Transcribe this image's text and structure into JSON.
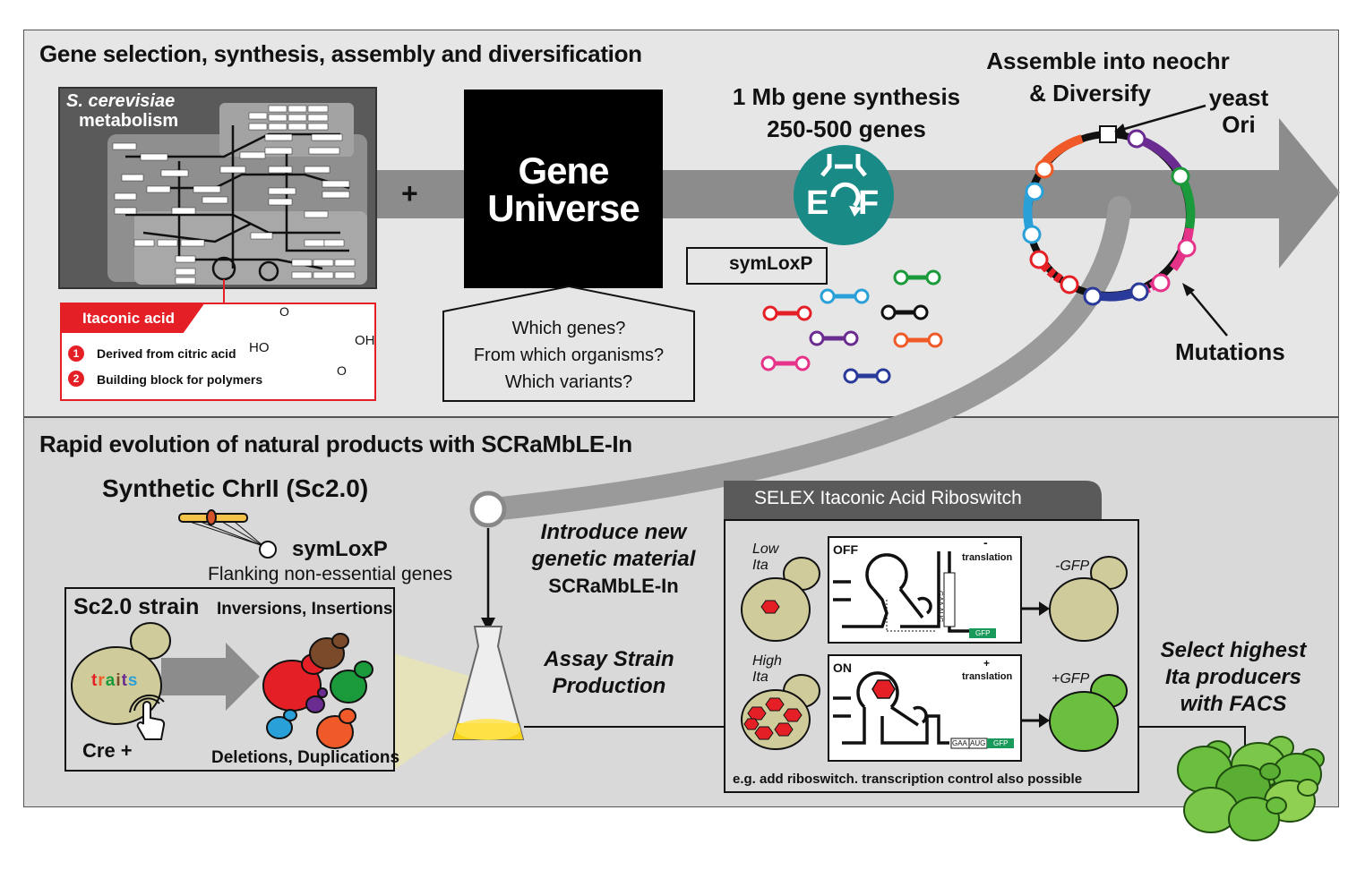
{
  "top": {
    "heading": "Gene selection, synthesis, assembly and diversification",
    "metabolism": {
      "title_italic": "S. cerevisiae",
      "title_rest": "metabolism"
    },
    "plus": "+",
    "itaconic": {
      "title": "Itaconic acid",
      "items": [
        {
          "num": "1",
          "text": "Derived from citric acid"
        },
        {
          "num": "2",
          "text": "Building block for polymers"
        }
      ],
      "formula": {
        "ho": "HO",
        "oh": "OH",
        "o": "O"
      }
    },
    "gene_universe": {
      "line1": "Gene",
      "line2": "Universe"
    },
    "questions": [
      "Which genes?",
      "From which organisms?",
      "Which variants?"
    ],
    "synthesis": {
      "line1": "1 Mb gene synthesis",
      "line2": "250-500 genes"
    },
    "logo": {
      "left": "E",
      "right": "F"
    },
    "symloxp_legend": "symLoxP",
    "assemble": {
      "line1": "Assemble into neochr",
      "line2": "& Diversify"
    },
    "yeast_ori": {
      "line1": "yeast",
      "line2": "Ori"
    },
    "mutations": "Mutations"
  },
  "bottom": {
    "heading": "Rapid evolution of natural products with SCRaMbLE-In",
    "synthetic_chr": "Synthetic ChrII (Sc2.0)",
    "symloxp": "symLoxP",
    "flanking": "Flanking non-essential genes",
    "strain": {
      "title": "Sc2.0 strain",
      "inversions": "Inversions, Insertions",
      "traits": [
        "t",
        "r",
        "a",
        "i",
        "t",
        "s"
      ],
      "cre": "Cre +",
      "deletions": "Deletions, Duplications"
    },
    "introduce": {
      "line1": "Introduce new",
      "line2": "genetic material",
      "line3": "SCRaMbLE-In"
    },
    "assay": {
      "line1": "Assay Strain",
      "line2": "Production"
    },
    "selex": {
      "title": "SELEX Itaconic Acid Riboswitch",
      "low": {
        "line1": "Low",
        "line2": "Ita"
      },
      "high": {
        "line1": "High",
        "line2": "Ita"
      },
      "off": "OFF",
      "on": "ON",
      "minus": "-",
      "plus": "+",
      "translation": "translation",
      "gfp_box": "GFP",
      "gaa": "GAA",
      "aug": "AUG",
      "minus_gfp": "-GFP",
      "plus_gfp": "+GFP",
      "footer": "e.g. add riboswitch. transcription control also possible"
    },
    "select": {
      "line1": "Select highest",
      "line2": "Ita producers",
      "line3": "with FACS"
    }
  },
  "colors": {
    "panel_top": "#e6e6e6",
    "panel_bottom": "#d9d9d9",
    "arrow": "#8c8c8c",
    "red": "#e42026",
    "teal": "#1a8a87",
    "yeast_tan": "#cfcb9a",
    "gfp_green": "#6abf3e"
  },
  "icons": {
    "hexagon": "red-hexagon-icon",
    "finger": "finger-tap-icon",
    "flask": "flask-icon"
  }
}
